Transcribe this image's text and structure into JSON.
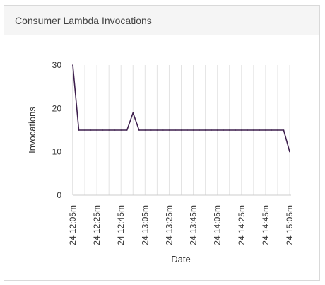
{
  "panel": {
    "title": "Consumer Lambda Invocations"
  },
  "chart_data": {
    "type": "line",
    "xlabel": "Date",
    "ylabel": "Invocations",
    "ylim": [
      0,
      30
    ],
    "yticks": [
      0,
      10,
      20,
      30
    ],
    "xticks": [
      "24 12:05m",
      "24 12:25m",
      "24 12:45m",
      "24 13:05m",
      "24 13:25m",
      "24 13:45m",
      "24 14:05m",
      "24 14:25m",
      "24 14:45m",
      "24 15:05m"
    ],
    "grid": "vertical",
    "series": [
      {
        "color": "#3d1f4d",
        "x": [
          "12:05",
          "12:10",
          "12:15",
          "12:20",
          "12:25",
          "12:30",
          "12:35",
          "12:40",
          "12:45",
          "12:50",
          "12:55",
          "13:00",
          "13:05",
          "13:10",
          "13:15",
          "13:20",
          "13:25",
          "13:30",
          "13:35",
          "13:40",
          "13:45",
          "13:50",
          "13:55",
          "14:00",
          "14:05",
          "14:10",
          "14:15",
          "14:20",
          "14:25",
          "14:30",
          "14:35",
          "14:40",
          "14:45",
          "14:50",
          "14:55",
          "15:00",
          "15:05"
        ],
        "values": [
          30,
          15,
          15,
          15,
          15,
          15,
          15,
          15,
          15,
          15,
          19,
          15,
          15,
          15,
          15,
          15,
          15,
          15,
          15,
          15,
          15,
          15,
          15,
          15,
          15,
          15,
          15,
          15,
          15,
          15,
          15,
          15,
          15,
          15,
          15,
          15,
          10
        ]
      }
    ]
  }
}
